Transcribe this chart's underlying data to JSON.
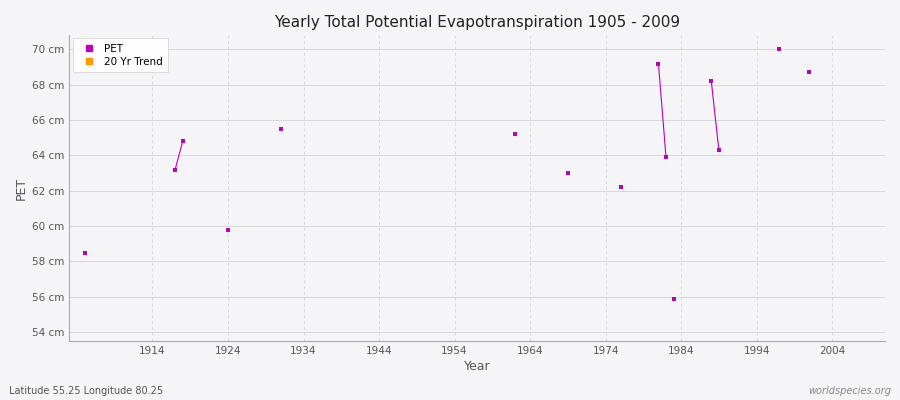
{
  "title": "Yearly Total Potential Evapotranspiration 1905 - 2009",
  "xlabel": "Year",
  "ylabel": "PET",
  "subtitle_left": "Latitude 55.25 Longitude 80.25",
  "subtitle_right": "worldspecies.org",
  "ylim": [
    53.5,
    70.8
  ],
  "xlim": [
    1903,
    2011
  ],
  "ytick_labels": [
    "54 cm",
    "56 cm",
    "58 cm",
    "60 cm",
    "62 cm",
    "64 cm",
    "66 cm",
    "68 cm",
    "70 cm"
  ],
  "ytick_values": [
    54,
    56,
    58,
    60,
    62,
    64,
    66,
    68,
    70
  ],
  "xtick_values": [
    1914,
    1924,
    1934,
    1944,
    1954,
    1964,
    1974,
    1984,
    1994,
    2004
  ],
  "background_color": "#f5f5f8",
  "plot_bg_color": "#f5f5f8",
  "grid_color_h": "#d8d8d8",
  "grid_color_v": "#d8d8d8",
  "pet_color": "#bb00bb",
  "trend_color": "#ff9900",
  "pet_data": [
    [
      1905,
      58.5
    ],
    [
      1917,
      63.2
    ],
    [
      1918,
      64.8
    ],
    [
      1924,
      59.8
    ],
    [
      1931,
      65.5
    ],
    [
      1962,
      65.2
    ],
    [
      1969,
      63.0
    ],
    [
      1976,
      62.2
    ],
    [
      1981,
      69.2
    ],
    [
      1982,
      63.9
    ],
    [
      1983,
      55.9
    ],
    [
      1988,
      68.2
    ],
    [
      1989,
      64.3
    ],
    [
      1997,
      70.0
    ],
    [
      2001,
      68.7
    ]
  ],
  "line_segments": [
    [
      [
        1917,
        63.2
      ],
      [
        1918,
        64.8
      ]
    ],
    [
      [
        1981,
        69.2
      ],
      [
        1982,
        63.9
      ]
    ],
    [
      [
        1988,
        68.2
      ],
      [
        1989,
        64.3
      ]
    ]
  ],
  "legend_pet_label": "PET",
  "legend_trend_label": "20 Yr Trend"
}
